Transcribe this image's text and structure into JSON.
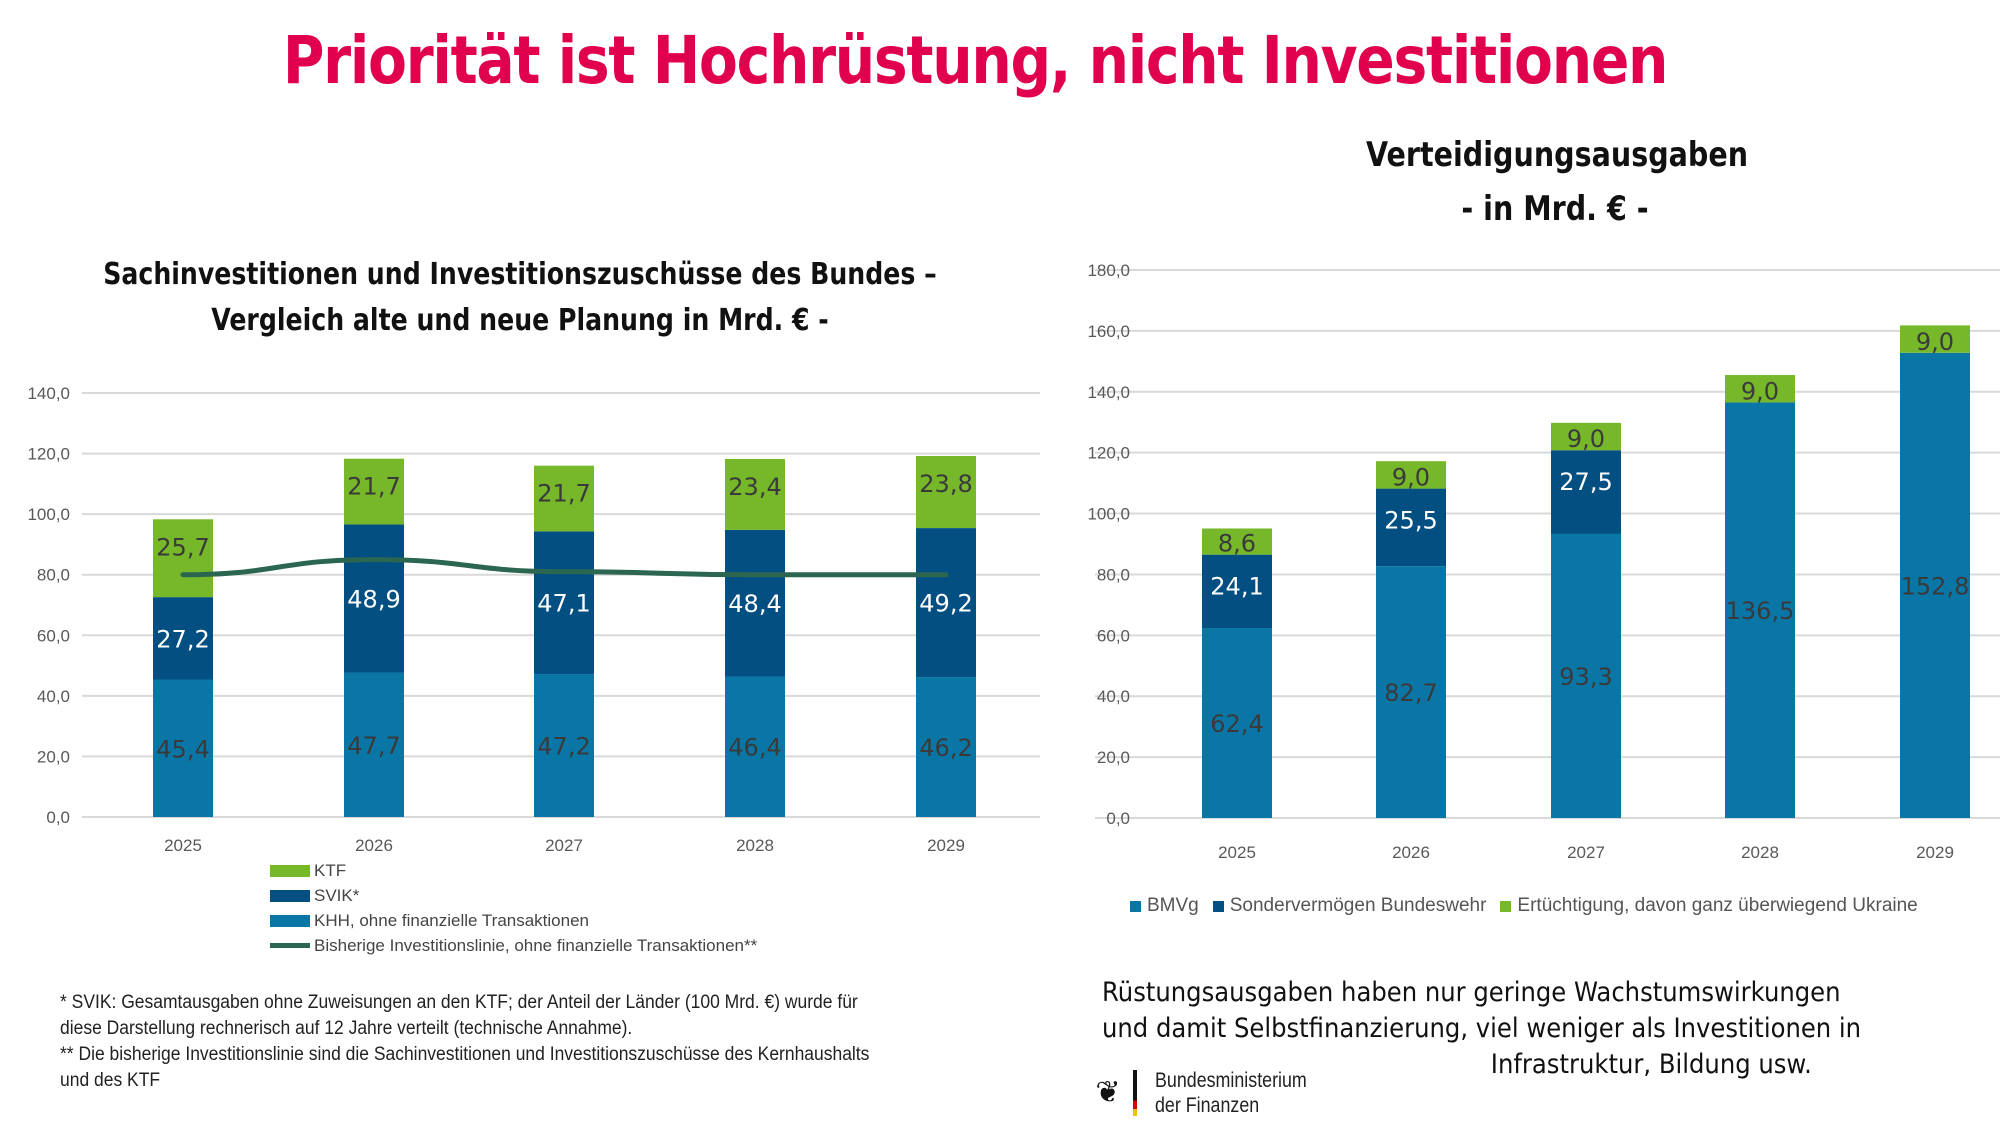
{
  "slide": {
    "title": "Priorität ist Hochrüstung, nicht Investitionen",
    "title_color": "#e0004d"
  },
  "colors": {
    "khh": "#0a76a6",
    "svik": "#034f82",
    "ktf": "#76b82a",
    "line": "#2b6650",
    "grid": "#d9d9d9",
    "label_dark": "#3a3a3a",
    "label_light": "#ffffff"
  },
  "chart_data": [
    {
      "type": "bar",
      "stacked": true,
      "title_line1": "Sachinvestitionen und Investitionszuschüsse des Bundes –",
      "title_line2": "Vergleich alte und neue Planung  in Mrd. € -",
      "xlabel": "",
      "ylabel": "",
      "ylim": [
        0,
        140
      ],
      "yticks": [
        "0,0",
        "20,0",
        "40,0",
        "60,0",
        "80,0",
        "100,0",
        "120,0",
        "140,0"
      ],
      "ytick_values": [
        0,
        20,
        40,
        60,
        80,
        100,
        120,
        140
      ],
      "grid": true,
      "legend_position": "bottom-left",
      "categories": [
        "2025",
        "2026",
        "2027",
        "2028",
        "2029"
      ],
      "series": [
        {
          "name": "KHH, ohne finanzielle Transaktionen",
          "key": "khh",
          "values": [
            45.4,
            47.7,
            47.2,
            46.4,
            46.2
          ],
          "labels": [
            "45,4",
            "47,7",
            "47,2",
            "46,4",
            "46,2"
          ]
        },
        {
          "name": "SVIK*",
          "key": "svik",
          "values": [
            27.2,
            48.9,
            47.1,
            48.4,
            49.2
          ],
          "labels": [
            "27,2",
            "48,9",
            "47,1",
            "48,4",
            "49,2"
          ]
        },
        {
          "name": "KTF",
          "key": "ktf",
          "values": [
            25.7,
            21.7,
            21.7,
            23.4,
            23.8
          ],
          "labels": [
            "25,7",
            "21,7",
            "21,7",
            "23,4",
            "23,8"
          ]
        }
      ],
      "line_series": {
        "name": "Bisherige Investitionslinie, ohne finanzielle Transaktionen**",
        "key": "line",
        "values": [
          80,
          85,
          81,
          80,
          80
        ]
      },
      "legend": [
        {
          "label": "KTF",
          "key": "ktf",
          "kind": "box"
        },
        {
          "label": "SVIK*",
          "key": "svik",
          "kind": "box"
        },
        {
          "label": "KHH, ohne finanzielle Transaktionen",
          "key": "khh",
          "kind": "box"
        },
        {
          "label": "Bisherige Investitionslinie, ohne finanzielle Transaktionen**",
          "key": "line",
          "kind": "line"
        }
      ]
    },
    {
      "type": "bar",
      "stacked": true,
      "title_line1": "Verteidigungsausgaben",
      "title_line2": "- in Mrd. € -",
      "xlabel": "",
      "ylabel": "",
      "ylim": [
        0,
        180
      ],
      "yticks": [
        "0,0",
        "20,0",
        "40,0",
        "60,0",
        "80,0",
        "100,0",
        "120,0",
        "140,0",
        "160,0",
        "180,0"
      ],
      "ytick_values": [
        0,
        20,
        40,
        60,
        80,
        100,
        120,
        140,
        160,
        180
      ],
      "grid": true,
      "legend_position": "bottom",
      "categories": [
        "2025",
        "2026",
        "2027",
        "2028",
        "2029"
      ],
      "series": [
        {
          "name": "BMVg",
          "key": "khh",
          "values": [
            62.4,
            82.7,
            93.3,
            136.5,
            152.8
          ],
          "labels": [
            "62,4",
            "82,7",
            "93,3",
            "136,5",
            "152,8"
          ]
        },
        {
          "name": "Sondervermögen Bundeswehr",
          "key": "svik",
          "values": [
            24.1,
            25.5,
            27.5,
            0,
            0
          ],
          "labels": [
            "24,1",
            "25,5",
            "27,5",
            "",
            ""
          ]
        },
        {
          "name": "Ertüchtigung, davon ganz überwiegend Ukraine",
          "key": "ktf",
          "values": [
            8.6,
            9.0,
            9.0,
            9.0,
            9.0
          ],
          "labels": [
            "8,6",
            "9,0",
            "9,0",
            "9,0",
            "9,0"
          ]
        }
      ],
      "legend": [
        {
          "label": "BMVg",
          "key": "khh"
        },
        {
          "label": "Sondervermögen Bundeswehr",
          "key": "svik"
        },
        {
          "label": "Ertüchtigung, davon ganz überwiegend Ukraine",
          "key": "ktf"
        }
      ]
    }
  ],
  "footnotes": [
    "* SVIK: Gesamtausgaben ohne Zuweisungen an den KTF; der Anteil der Länder (100 Mrd. €) wurde für",
    "diese Darstellung rechnerisch auf 12 Jahre verteilt (technische Annahme).",
    "** Die bisherige Investitionslinie sind die Sachinvestitionen und Investitionszuschüsse des Kernhaushalts",
    "und des KTF"
  ],
  "comment": [
    "Rüstungsausgaben haben nur geringe Wachstumswirkungen",
    "und damit Selbstfinanzierung, viel weniger als Investitionen in",
    "Infrastruktur, Bildung usw."
  ],
  "logo": {
    "icon": "federal-eagle-icon",
    "line1": "Bundesministerium",
    "line2": "der Finanzen"
  }
}
